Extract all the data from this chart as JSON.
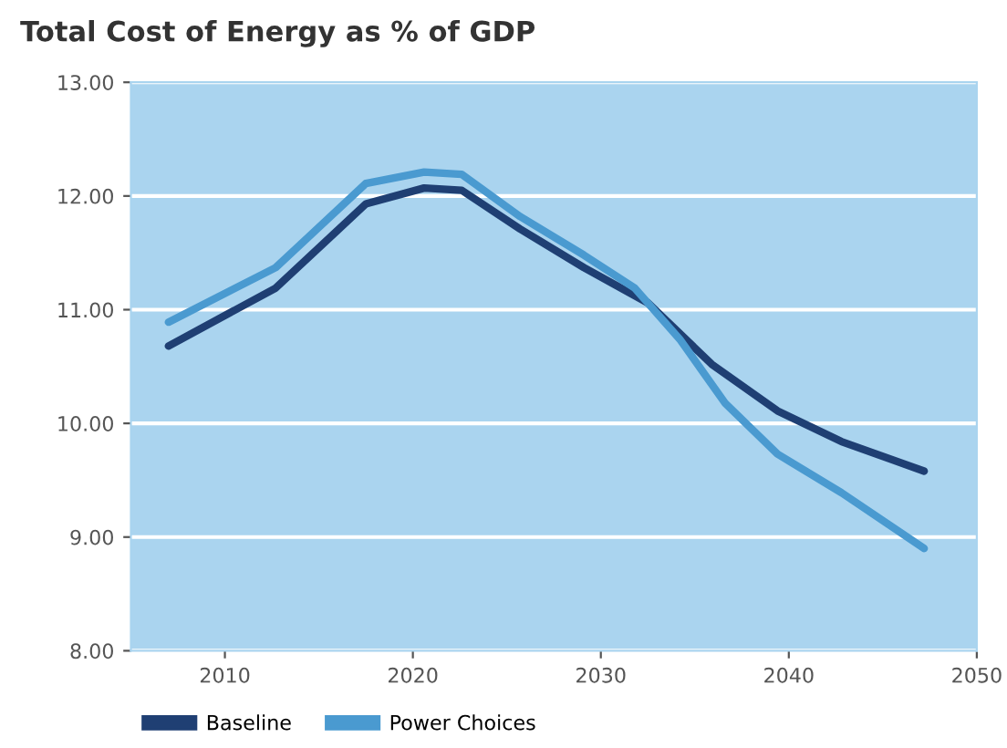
{
  "chart_data": {
    "type": "line",
    "title": "Total Cost of Energy as % of GDP",
    "series": [
      {
        "name": "Baseline",
        "color": "#1f3f73",
        "x": [
          2007,
          2012.7,
          2017.5,
          2020.6,
          2022.6,
          2025.7,
          2029.1,
          2032.5,
          2035.9,
          2039.4,
          2042.8,
          2047.2
        ],
        "values": [
          10.68,
          11.19,
          11.93,
          12.07,
          12.05,
          11.71,
          11.37,
          11.06,
          10.52,
          10.11,
          9.84,
          9.58
        ]
      },
      {
        "name": "Power Choices",
        "color": "#4a9ad0",
        "x": [
          2007,
          2012.7,
          2017.5,
          2020.6,
          2022.6,
          2025.7,
          2029.1,
          2031.8,
          2034.2,
          2036.6,
          2039.4,
          2042.8,
          2047.2
        ],
        "values": [
          10.89,
          11.37,
          12.11,
          12.21,
          12.19,
          11.82,
          11.48,
          11.19,
          10.74,
          10.18,
          9.73,
          9.39,
          8.9
        ]
      }
    ],
    "xlim": [
      2005,
      2050
    ],
    "xticks": [
      2010,
      2020,
      2030,
      2040,
      2050
    ],
    "ylim": [
      8,
      13
    ],
    "yticks": [
      {
        "value": 8,
        "label": "8.00"
      },
      {
        "value": 9,
        "label": "9.00"
      },
      {
        "value": 10,
        "label": "10.00"
      },
      {
        "value": 11,
        "label": "11.00"
      },
      {
        "value": 12,
        "label": "12.00"
      },
      {
        "value": 13,
        "label": "13.00"
      }
    ],
    "grid": "y",
    "legend": "bottom",
    "marker": "none",
    "line_style": "solid"
  }
}
